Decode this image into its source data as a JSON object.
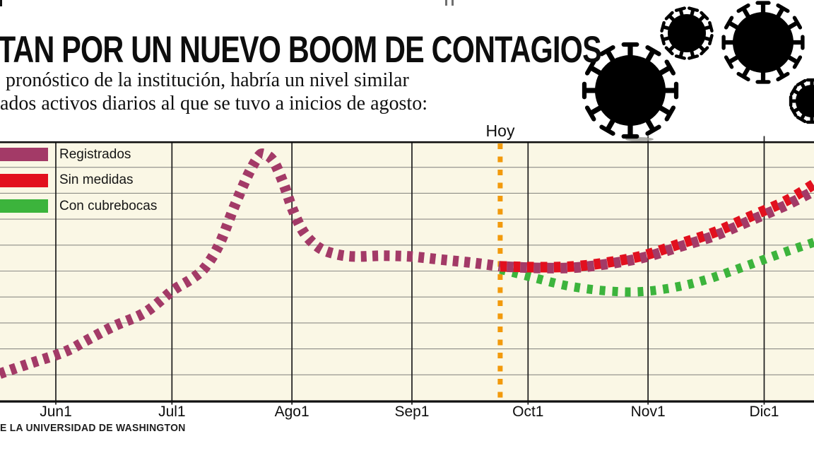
{
  "header": {
    "title": "TAN POR UN NUEVO BOOM DE CONTAGIOS",
    "subtitle_line1": "pronóstico de la institución, habría un nivel similar",
    "subtitle_line2": "ados activos diarios al que se tuvo a inicios de agosto:"
  },
  "legend": {
    "items": [
      {
        "label": "Registrados",
        "color": "#A33A67"
      },
      {
        "label": "Sin medidas",
        "color": "#E2101E"
      },
      {
        "label": "Con cubrebocas",
        "color": "#3CB43C"
      }
    ]
  },
  "annotations": {
    "today_label": "Hoy",
    "today_line_color": "#F29A0C"
  },
  "source_text": "E LA UNIVERSIDAD DE WASHINGTON",
  "decorations": {
    "icons": [
      "coronavirus-icon-large",
      "coronavirus-icon-small",
      "coronavirus-icon-top-right",
      "coronavirus-icon-clipped-right"
    ],
    "icon_color": "#000000"
  },
  "chart_data": {
    "type": "line",
    "title": "",
    "xlabel": "",
    "ylabel": "",
    "background_color": "#FAF7E5",
    "gridline_color": "#8D8D87",
    "month_line_color": "#1C1C1C",
    "x_axis": {
      "unit": "days (0 = Jun 1)",
      "range_days": [
        -14.5,
        196.5
      ],
      "ticks": [
        {
          "day": 0,
          "label": "Jun1"
        },
        {
          "day": 30,
          "label": "Jul1"
        },
        {
          "day": 61,
          "label": "Ago1"
        },
        {
          "day": 92,
          "label": "Sep1"
        },
        {
          "day": 122,
          "label": "Oct1"
        },
        {
          "day": 153,
          "label": "Nov1"
        },
        {
          "day": 183,
          "label": "Dic1"
        }
      ]
    },
    "y_axis": {
      "range_units": [
        0,
        10
      ],
      "gridline_every": 1,
      "tick_labels_visible": false
    },
    "today_day": 114.8,
    "series": [
      {
        "name": "Registrados",
        "color": "#A33A67",
        "style": "thick-dashed",
        "points": [
          [
            -14.5,
            1.04
          ],
          [
            -7.1,
            1.42
          ],
          [
            0,
            1.76
          ],
          [
            4,
            2.0
          ],
          [
            7.5,
            2.29
          ],
          [
            14.8,
            2.86
          ],
          [
            23.1,
            3.41
          ],
          [
            30.2,
            4.25
          ],
          [
            35,
            4.69
          ],
          [
            38.6,
            5.15
          ],
          [
            42.3,
            6.05
          ],
          [
            45.9,
            7.41
          ],
          [
            49.6,
            8.69
          ],
          [
            52.3,
            9.4
          ],
          [
            53.8,
            9.51
          ],
          [
            56.2,
            9.24
          ],
          [
            58.7,
            8.42
          ],
          [
            61.3,
            7.33
          ],
          [
            64.2,
            6.46
          ],
          [
            67.9,
            5.91
          ],
          [
            71.9,
            5.67
          ],
          [
            77,
            5.56
          ],
          [
            84.4,
            5.59
          ],
          [
            91.7,
            5.56
          ],
          [
            99,
            5.45
          ],
          [
            106.3,
            5.34
          ],
          [
            110.9,
            5.26
          ],
          [
            114.8,
            5.18
          ]
        ]
      },
      {
        "name": "Con cubrebocas",
        "color": "#3CB43C",
        "style": "thick-dotted",
        "points": [
          [
            114.8,
            5.07
          ],
          [
            122.8,
            4.77
          ],
          [
            131.9,
            4.44
          ],
          [
            141.1,
            4.25
          ],
          [
            150.2,
            4.2
          ],
          [
            159.4,
            4.36
          ],
          [
            168.5,
            4.69
          ],
          [
            179.5,
            5.26
          ],
          [
            188.7,
            5.75
          ],
          [
            196.3,
            6.13
          ]
        ]
      },
      {
        "name": "Sin medidas",
        "color": "#E2101E",
        "style": "thick-dashed",
        "points": [
          [
            114.8,
            5.18
          ],
          [
            124.6,
            5.15
          ],
          [
            133.8,
            5.18
          ],
          [
            142.9,
            5.34
          ],
          [
            152.1,
            5.61
          ],
          [
            161.2,
            6.05
          ],
          [
            170.4,
            6.51
          ],
          [
            179.5,
            7.11
          ],
          [
            188.7,
            7.71
          ],
          [
            196.3,
            8.39
          ]
        ]
      },
      {
        "name": "Registrados (proyección)",
        "color": "#A33A67",
        "style": "thick-dashed",
        "points": [
          [
            114.8,
            5.18
          ],
          [
            124.6,
            5.12
          ],
          [
            133.8,
            5.13
          ],
          [
            142.9,
            5.28
          ],
          [
            152.1,
            5.53
          ],
          [
            161.2,
            5.94
          ],
          [
            170.4,
            6.37
          ],
          [
            179.5,
            6.95
          ],
          [
            188.7,
            7.54
          ],
          [
            196.3,
            8.12
          ]
        ]
      }
    ]
  }
}
